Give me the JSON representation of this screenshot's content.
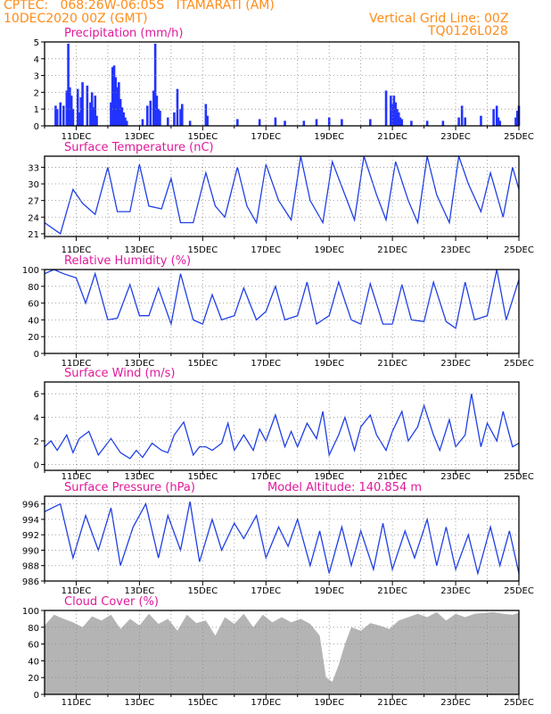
{
  "header": {
    "line1": "CPTEC:   068:26W-06:05S   ITAMARATI (AM)",
    "line2": "10DEC2020 00Z (GMT)",
    "right1": "Vertical Grid Line: 00Z",
    "right2": "TQ0126L028"
  },
  "colors": {
    "header": "#ff8c1a",
    "title": "#e0199a",
    "line": "#1f3fe6",
    "bar": "#2233ff",
    "cloud": "#b4b4b4",
    "grid": "#8c8c8c"
  },
  "x_axis": {
    "start_day": 10,
    "end_day": 25,
    "tick_days": [
      11,
      13,
      15,
      17,
      19,
      21,
      23,
      25
    ],
    "tick_labels": [
      "11DEC",
      "13DEC",
      "15DEC",
      "17DEC",
      "19DEC",
      "21DEC",
      "23DEC",
      "25DEC"
    ]
  },
  "chart_data": [
    {
      "id": "precip",
      "type": "bar",
      "title": "Precipitation (mm/h)",
      "ylim": [
        0,
        5
      ],
      "yticks": [
        0,
        1,
        2,
        3,
        4,
        5
      ],
      "grid": true,
      "x": [
        10.35,
        10.4,
        10.5,
        10.6,
        10.7,
        10.75,
        10.8,
        10.85,
        10.9,
        11.05,
        11.1,
        11.15,
        11.2,
        11.35,
        11.45,
        11.5,
        11.55,
        11.6,
        11.65,
        12.1,
        12.15,
        12.2,
        12.25,
        12.3,
        12.35,
        12.4,
        12.45,
        12.5,
        12.55,
        12.6,
        13.1,
        13.25,
        13.35,
        13.45,
        13.5,
        13.55,
        13.6,
        13.65,
        13.9,
        14.1,
        14.2,
        14.3,
        14.35,
        14.6,
        15.1,
        15.15,
        16.1,
        16.8,
        17.3,
        17.6,
        18.2,
        18.6,
        19.0,
        19.4,
        20.3,
        20.8,
        20.95,
        21.0,
        21.05,
        21.1,
        21.15,
        21.2,
        21.25,
        21.3,
        21.6,
        22.1,
        22.6,
        23.1,
        23.2,
        23.3,
        23.8,
        24.2,
        24.3,
        24.35,
        24.4,
        24.9,
        24.95,
        25.0
      ],
      "values": [
        1.2,
        1.0,
        1.4,
        1.2,
        2.1,
        4.9,
        2.3,
        1.8,
        1.0,
        2.2,
        0.8,
        1.7,
        2.6,
        2.4,
        1.4,
        2.0,
        1.1,
        1.8,
        0.6,
        1.4,
        3.5,
        3.6,
        2.9,
        2.3,
        2.6,
        1.6,
        1.1,
        0.8,
        0.5,
        0.3,
        0.4,
        1.2,
        1.5,
        2.1,
        4.9,
        1.8,
        1.0,
        0.9,
        0.5,
        0.8,
        2.2,
        1.0,
        1.3,
        0.3,
        1.3,
        0.6,
        0.4,
        0.4,
        0.5,
        0.3,
        0.3,
        0.4,
        0.5,
        0.4,
        0.4,
        2.1,
        1.8,
        1.3,
        1.8,
        1.4,
        1.0,
        0.8,
        0.5,
        0.4,
        0.3,
        0.3,
        0.3,
        0.5,
        1.2,
        0.5,
        0.6,
        1.0,
        1.2,
        0.5,
        0.3,
        0.5,
        0.9,
        1.2
      ]
    },
    {
      "id": "temp",
      "type": "line",
      "title": "Surface Temperature (nC)",
      "ylim": [
        20.5,
        35
      ],
      "yticks": [
        21,
        24,
        27,
        30,
        33
      ],
      "grid": true,
      "x": [
        10.0,
        10.5,
        10.9,
        11.2,
        11.6,
        12.0,
        12.3,
        12.7,
        13.0,
        13.3,
        13.7,
        14.0,
        14.3,
        14.7,
        15.1,
        15.4,
        15.7,
        16.1,
        16.4,
        16.7,
        17.0,
        17.4,
        17.8,
        18.1,
        18.4,
        18.8,
        19.1,
        19.5,
        19.8,
        20.1,
        20.5,
        20.8,
        21.1,
        21.5,
        21.8,
        22.1,
        22.4,
        22.8,
        23.1,
        23.4,
        23.8,
        24.1,
        24.5,
        24.8,
        25.0
      ],
      "values": [
        23,
        21,
        29,
        26.5,
        24.5,
        33,
        25,
        25,
        33.5,
        26,
        25.5,
        31,
        23,
        23,
        32,
        26,
        24,
        33,
        26,
        23,
        33.5,
        27,
        23.5,
        35,
        27,
        23,
        34,
        28,
        23.5,
        35,
        28,
        23.5,
        34,
        27,
        23,
        35,
        28,
        23,
        35,
        30,
        25,
        32,
        24,
        33,
        29
      ]
    },
    {
      "id": "rh",
      "type": "line",
      "title": "Relative Humidity (%)",
      "ylim": [
        0,
        100
      ],
      "yticks": [
        0,
        20,
        40,
        60,
        80,
        100
      ],
      "grid": true,
      "x": [
        10.0,
        10.3,
        10.6,
        11.0,
        11.3,
        11.6,
        12.0,
        12.3,
        12.7,
        13.0,
        13.3,
        13.6,
        14.0,
        14.3,
        14.7,
        15.0,
        15.3,
        15.6,
        16.0,
        16.3,
        16.7,
        17.0,
        17.3,
        17.6,
        18.0,
        18.3,
        18.6,
        19.0,
        19.3,
        19.7,
        20.0,
        20.3,
        20.7,
        21.0,
        21.3,
        21.6,
        22.0,
        22.3,
        22.7,
        23.0,
        23.3,
        23.6,
        24.0,
        24.3,
        24.6,
        25.0
      ],
      "values": [
        95,
        100,
        95,
        90,
        60,
        95,
        40,
        42,
        82,
        45,
        45,
        78,
        35,
        95,
        40,
        35,
        70,
        40,
        45,
        78,
        40,
        50,
        80,
        40,
        45,
        85,
        35,
        45,
        85,
        40,
        35,
        83,
        35,
        35,
        82,
        40,
        38,
        85,
        38,
        30,
        85,
        40,
        45,
        100,
        40,
        88
      ]
    },
    {
      "id": "wind",
      "type": "line",
      "title": "Surface Wind (m/s)",
      "ylim": [
        -0.5,
        7
      ],
      "yticks": [
        0,
        2,
        4,
        6
      ],
      "grid": true,
      "x": [
        10.0,
        10.2,
        10.4,
        10.7,
        10.9,
        11.1,
        11.4,
        11.7,
        11.9,
        12.1,
        12.4,
        12.7,
        12.9,
        13.1,
        13.4,
        13.7,
        13.9,
        14.1,
        14.4,
        14.7,
        14.9,
        15.1,
        15.3,
        15.6,
        15.8,
        16.0,
        16.3,
        16.6,
        16.8,
        17.0,
        17.3,
        17.6,
        17.8,
        18.0,
        18.3,
        18.6,
        18.8,
        19.0,
        19.3,
        19.5,
        19.8,
        20.0,
        20.3,
        20.5,
        20.8,
        21.0,
        21.3,
        21.5,
        21.8,
        22.0,
        22.3,
        22.5,
        22.8,
        23.0,
        23.3,
        23.5,
        23.8,
        24.0,
        24.3,
        24.5,
        24.8,
        25.0
      ],
      "values": [
        1.5,
        2,
        1.2,
        2.5,
        1,
        2.2,
        2.8,
        0.8,
        1.5,
        2.2,
        1,
        0.5,
        1.2,
        0.6,
        1.8,
        1.2,
        1,
        2.5,
        3.6,
        0.8,
        1.5,
        1.5,
        1.2,
        1.8,
        3.5,
        1.2,
        2.5,
        1.2,
        3,
        2,
        4.2,
        1.5,
        2.8,
        1.5,
        3.5,
        2.2,
        4.5,
        0.8,
        2.5,
        4,
        1.2,
        3.2,
        4.2,
        2.5,
        1.2,
        2.8,
        4.5,
        2,
        3.2,
        5,
        2.5,
        1.2,
        3.8,
        1.5,
        2.5,
        6,
        1.5,
        3.5,
        2,
        4.5,
        1.5,
        1.8
      ]
    },
    {
      "id": "pressure",
      "type": "line",
      "title": "Surface Pressure (hPa)",
      "annotation": "Model Altitude: 140.854 m",
      "ylim": [
        986,
        997
      ],
      "yticks": [
        986,
        988,
        990,
        992,
        994,
        996
      ],
      "grid": true,
      "x": [
        10.0,
        10.5,
        10.9,
        11.3,
        11.7,
        12.1,
        12.4,
        12.8,
        13.2,
        13.6,
        13.9,
        14.3,
        14.6,
        14.9,
        15.3,
        15.6,
        16.0,
        16.3,
        16.7,
        17.0,
        17.4,
        17.7,
        18.0,
        18.4,
        18.7,
        19.0,
        19.4,
        19.7,
        20.0,
        20.4,
        20.7,
        21.0,
        21.4,
        21.7,
        22.1,
        22.4,
        22.7,
        23.0,
        23.4,
        23.7,
        24.1,
        24.4,
        24.7,
        25.0
      ],
      "values": [
        995,
        996,
        989,
        994.5,
        990,
        995.5,
        988,
        993,
        996,
        989,
        994.5,
        990,
        996.3,
        988.5,
        994,
        990,
        993.5,
        991.5,
        994.5,
        989,
        993,
        990.5,
        994,
        988,
        992.5,
        987,
        993,
        988,
        992.5,
        987.5,
        993.5,
        987.5,
        992.5,
        989,
        994,
        988,
        993,
        987.5,
        992,
        987,
        993,
        988,
        992.5,
        987
      ]
    },
    {
      "id": "cloud",
      "type": "area",
      "title": "Cloud Cover (%)",
      "ylim": [
        0,
        100
      ],
      "yticks": [
        0,
        20,
        40,
        60,
        80,
        100
      ],
      "grid": true,
      "x": [
        10.0,
        10.3,
        10.6,
        10.9,
        11.2,
        11.5,
        11.8,
        12.1,
        12.4,
        12.7,
        13.0,
        13.3,
        13.6,
        13.9,
        14.2,
        14.5,
        14.8,
        15.1,
        15.4,
        15.7,
        16.0,
        16.3,
        16.6,
        16.9,
        17.2,
        17.5,
        17.8,
        18.1,
        18.4,
        18.7,
        18.9,
        19.1,
        19.3,
        19.5,
        19.7,
        20.0,
        20.3,
        20.6,
        20.9,
        21.2,
        21.5,
        21.8,
        22.1,
        22.4,
        22.7,
        23.0,
        23.3,
        23.6,
        23.9,
        24.2,
        24.5,
        24.8,
        25.0
      ],
      "values": [
        82,
        95,
        90,
        86,
        80,
        93,
        88,
        95,
        78,
        90,
        82,
        96,
        84,
        90,
        76,
        95,
        85,
        88,
        70,
        92,
        84,
        96,
        80,
        95,
        86,
        92,
        86,
        90,
        84,
        70,
        20,
        15,
        35,
        60,
        80,
        76,
        85,
        82,
        78,
        88,
        92,
        96,
        92,
        98,
        88,
        96,
        92,
        96,
        97,
        98,
        96,
        95,
        97
      ]
    }
  ]
}
